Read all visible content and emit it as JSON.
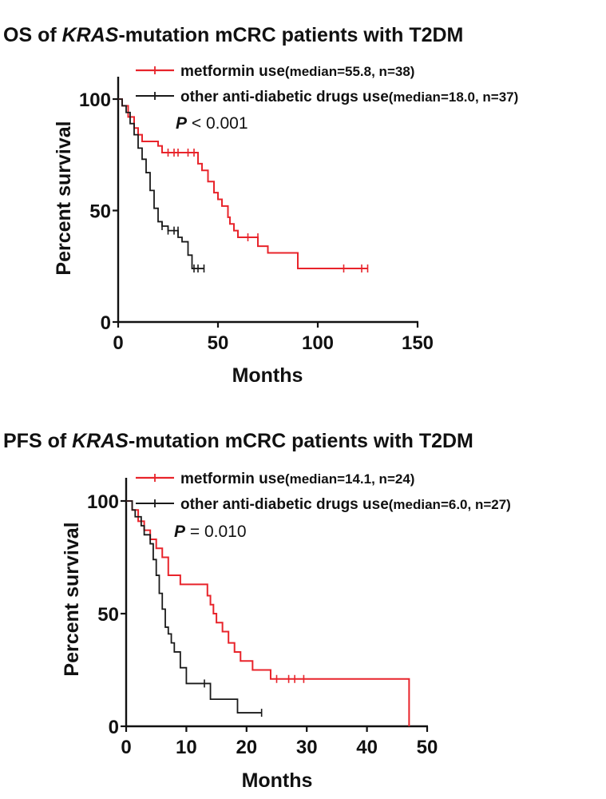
{
  "chart_data": [
    {
      "type": "line",
      "title_prefix": "OS of ",
      "title_italic": "KRAS",
      "title_suffix": "-mutation mCRC patients with T2DM",
      "xlabel": "Months",
      "ylabel": "Percent survival",
      "xlim": [
        0,
        150
      ],
      "ylim": [
        0,
        100
      ],
      "xticks": [
        "0",
        "50",
        "100",
        "150"
      ],
      "yticks": [
        "0",
        "50",
        "100"
      ],
      "p_label": "P",
      "p_text": " < 0.001",
      "series": [
        {
          "name": "metformin use",
          "stat": "(median=55.8, n=38)",
          "color": "#e8242b",
          "x": [
            0,
            2,
            5,
            8,
            10,
            12,
            20,
            22,
            40,
            42,
            45,
            48,
            50,
            52,
            55,
            56,
            58,
            60,
            70,
            75,
            90,
            100,
            125
          ],
          "y": [
            100,
            97,
            92,
            87,
            84,
            81,
            79,
            76,
            71,
            68,
            63,
            58,
            55,
            52,
            47,
            44,
            41,
            38,
            34,
            31,
            24,
            24,
            24
          ],
          "censor_x": [
            25,
            28,
            30,
            35,
            38,
            65,
            70,
            113,
            122,
            125
          ],
          "censor_y": [
            76,
            76,
            76,
            76,
            76,
            38,
            38,
            24,
            24,
            24
          ]
        },
        {
          "name": "other anti-diabetic drugs use",
          "stat": "(median=18.0, n=37)",
          "color": "#1a1a1a",
          "x": [
            0,
            2,
            4,
            6,
            8,
            10,
            12,
            14,
            16,
            18,
            20,
            22,
            25,
            30,
            32,
            35,
            37,
            43
          ],
          "y": [
            100,
            97,
            94,
            89,
            84,
            78,
            73,
            67,
            59,
            51,
            45,
            43,
            41,
            38,
            36,
            30,
            24,
            24
          ],
          "censor_x": [
            22,
            25,
            28,
            30,
            38,
            40,
            43
          ],
          "censor_y": [
            43,
            41,
            41,
            41,
            24,
            24,
            24
          ]
        }
      ]
    },
    {
      "type": "line",
      "title_prefix": "PFS of ",
      "title_italic": "KRAS",
      "title_suffix": "-mutation mCRC patients with T2DM",
      "xlabel": "Months",
      "ylabel": "Percent survival",
      "xlim": [
        0,
        50
      ],
      "ylim": [
        0,
        100
      ],
      "xticks": [
        "0",
        "10",
        "20",
        "30",
        "40",
        "50"
      ],
      "yticks": [
        "0",
        "50",
        "100"
      ],
      "p_label": "P",
      "p_text": " = 0.010",
      "series": [
        {
          "name": "metformin use",
          "stat": "(median=14.1, n=24)",
          "color": "#e8242b",
          "x": [
            0,
            1,
            2,
            3,
            4,
            5,
            6,
            7,
            9,
            13.5,
            14,
            14.5,
            15,
            16,
            17,
            18,
            19,
            21,
            24,
            47,
            47
          ],
          "y": [
            100,
            96,
            91,
            87,
            83,
            79,
            75,
            67,
            63,
            58,
            54,
            50,
            46,
            42,
            37,
            33,
            29,
            25,
            21,
            20,
            0
          ],
          "censor_x": [
            25,
            27,
            28,
            29.5
          ],
          "censor_y": [
            21,
            21,
            21,
            21
          ]
        },
        {
          "name": "other anti-diabetic drugs use",
          "stat": "(median=6.0, n=27)",
          "color": "#1a1a1a",
          "x": [
            0,
            1,
            1.5,
            2.5,
            3,
            4,
            4.5,
            5,
            5.5,
            6,
            6.5,
            7,
            7.5,
            8,
            9,
            10,
            13.5,
            14,
            18.5,
            22.5
          ],
          "y": [
            100,
            96,
            93,
            89,
            85,
            81,
            74,
            67,
            59,
            52,
            44,
            41,
            37,
            33,
            26,
            19,
            19,
            12,
            6,
            6
          ],
          "censor_x": [
            13,
            22.5
          ],
          "censor_y": [
            19,
            6
          ]
        }
      ]
    }
  ]
}
